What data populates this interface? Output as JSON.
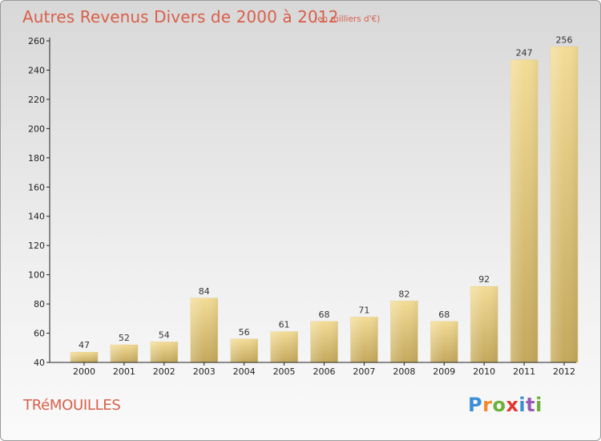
{
  "title": "Autres Revenus Divers de 2000 à 2012",
  "subtitle": "(en milliers d'€)",
  "commune": "TRéMOUILLES",
  "logo": {
    "letters": [
      "P",
      "r",
      "o",
      "x",
      "i",
      "t",
      "i"
    ],
    "colors": [
      "#3b8fd6",
      "#f28a2a",
      "#6bb13a",
      "#e0382f",
      "#3b8fd6",
      "#9b59b6",
      "#6bb13a"
    ]
  },
  "colors": {
    "bar_light": "#f3dc96",
    "bar_dark": "#c4a85c",
    "title": "#d8604a"
  },
  "chart_data": {
    "type": "bar",
    "title": "Autres Revenus Divers de 2000 à 2012",
    "subtitle": "(en milliers d'€)",
    "categories": [
      "2000",
      "2001",
      "2002",
      "2003",
      "2004",
      "2005",
      "2006",
      "2007",
      "2008",
      "2009",
      "2010",
      "2011",
      "2012"
    ],
    "values": [
      47,
      52,
      54,
      84,
      56,
      61,
      68,
      71,
      82,
      68,
      92,
      247,
      256
    ],
    "ylim": [
      40,
      260
    ],
    "yticks": [
      40,
      60,
      80,
      100,
      120,
      140,
      160,
      180,
      200,
      220,
      240,
      260
    ],
    "grid": false
  }
}
